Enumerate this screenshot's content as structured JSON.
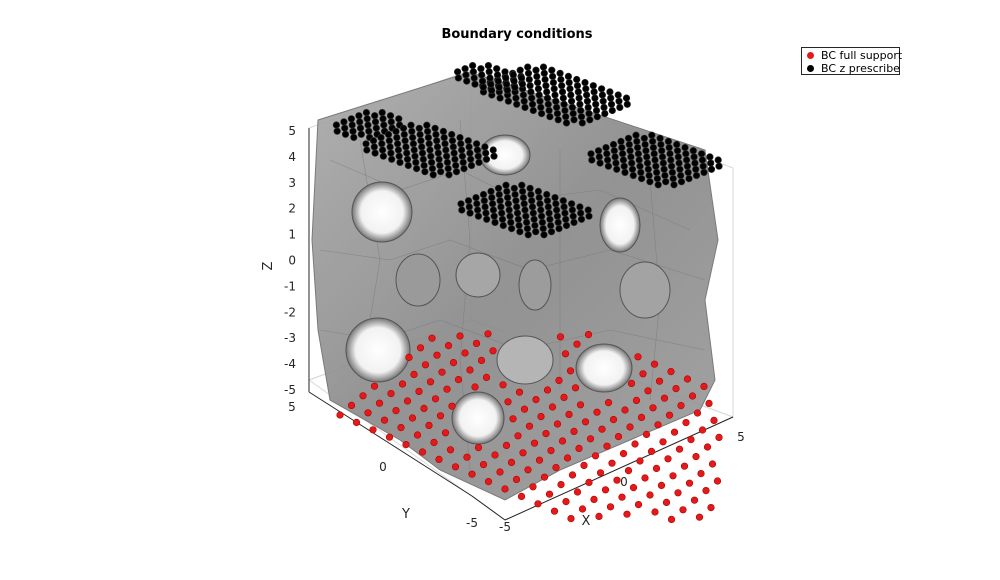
{
  "chart_data": {
    "type": "scatter",
    "title": "Boundary conditions",
    "xlabel": "X",
    "ylabel": "Y",
    "zlabel": "Z",
    "xlim": [
      -5,
      5
    ],
    "ylim": [
      -5,
      5
    ],
    "zlim": [
      -5,
      5
    ],
    "x_ticks": [
      "-5",
      "0",
      "5"
    ],
    "y_ticks": [
      "-5",
      "0",
      "5"
    ],
    "z_ticks": [
      "-5",
      "-4",
      "-3",
      "-2",
      "-1",
      "0",
      "1",
      "2",
      "3",
      "4",
      "5"
    ],
    "grid": true,
    "legend_position": "top-right",
    "surface_color": "#8c8c8c",
    "series": [
      {
        "name": "BC full support",
        "color": "#e31a1c",
        "z": -5,
        "region": "bottom face"
      },
      {
        "name": "BC z prescribe",
        "color": "#000000",
        "z": 5,
        "region": "top face"
      }
    ]
  }
}
